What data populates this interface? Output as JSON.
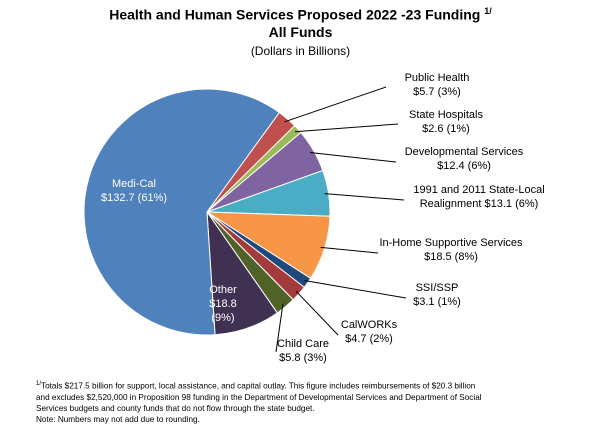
{
  "title": {
    "line1": "Health and Human Services Proposed 2022 -23 Funding",
    "footnote_marker": "1/",
    "line2": "All Funds",
    "subtitle": "(Dollars in Billions)"
  },
  "chart_data": {
    "type": "pie",
    "title": "Health and Human Services Proposed 2022 -23 Funding 1/ All Funds",
    "subtitle": "(Dollars in Billions)",
    "slices": [
      {
        "label": "Public Health",
        "value": 5.7,
        "display": "$5.7 (3%)",
        "color": "#C0504D"
      },
      {
        "label": "State Hospitals",
        "value": 2.6,
        "display": "$2.6 (1%)",
        "color": "#9BBB59"
      },
      {
        "label": "Developmental Services",
        "value": 12.4,
        "display": "$12.4 (6%)",
        "color": "#8064A2"
      },
      {
        "label": "1991 and 2011 State-Local Realignment",
        "value": 13.1,
        "display": "$13.1 (6%)",
        "color": "#4BACC6"
      },
      {
        "label": "In-Home Supportive Services",
        "value": 18.5,
        "display": "$18.5 (8%)",
        "color": "#F79646"
      },
      {
        "label": "SSI/SSP",
        "value": 3.1,
        "display": "$3.1 (1%)",
        "color": "#1F497D"
      },
      {
        "label": "CalWORKs",
        "value": 4.7,
        "display": "$4.7 (2%)",
        "color": "#A33B3A"
      },
      {
        "label": "Child Care",
        "value": 5.8,
        "display": "$5.8 (3%)",
        "color": "#4F6228"
      },
      {
        "label": "Other",
        "value": 18.8,
        "display": "$18.8 (9%)",
        "color": "#403152"
      },
      {
        "label": "Medi-Cal",
        "value": 132.7,
        "display": "$132.7 (61%)",
        "color": "#4F81BD"
      }
    ]
  },
  "labels": {
    "public_health": {
      "name": "Public Health",
      "amount": "$5.7 (3%)"
    },
    "state_hospitals": {
      "name": "State Hospitals",
      "amount": "$2.6 (1%)"
    },
    "developmental_services": {
      "name": "Developmental Services",
      "amount": "$12.4 (6%)"
    },
    "realignment": {
      "name": "1991 and 2011 State-Local",
      "amount": "Realignment $13.1 (6%)"
    },
    "ihss": {
      "name": "In-Home Supportive Services",
      "amount": "$18.5 (8%)"
    },
    "ssi": {
      "name": "SSI/SSP",
      "amount": "$3.1 (1%)"
    },
    "calworks": {
      "name": "CalWORKs",
      "amount": "$4.7 (2%)"
    },
    "child_care": {
      "name": "Child Care",
      "amount": "$5.8 (3%)"
    },
    "other": {
      "line1": "Other",
      "line2": "$18.8",
      "line3": "(9%)"
    },
    "medi_cal": {
      "line1": "Medi-Cal",
      "line2": "$132.7 (61%)"
    }
  },
  "footnotes": {
    "marker": "1/",
    "line1": "Totals $217.5 billion for support, local assistance, and capital outlay.  This figure includes reimbursements of $20.3 billion",
    "line2": "and excludes $2,520,000 in Proposition 98 funding in the Department of Developmental Services  and Department of Social",
    "line3": "Services budgets and county funds that do not flow through the state budget.",
    "line4": "Note: Numbers may not add due to rounding."
  },
  "colors": {
    "leader_line": "#000000",
    "inner_label": "#ffffff"
  }
}
